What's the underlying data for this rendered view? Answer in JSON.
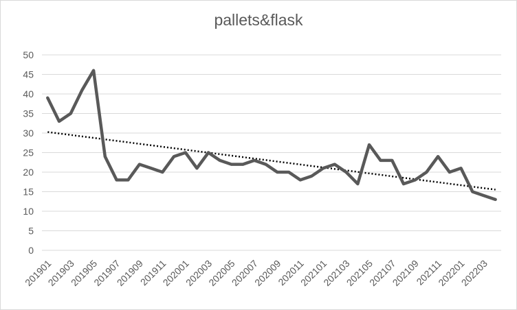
{
  "chart_data": {
    "type": "line",
    "title": "pallets&flask",
    "xlabel": "",
    "ylabel": "",
    "ylim": [
      0,
      50
    ],
    "y_ticks": [
      0,
      5,
      10,
      15,
      20,
      25,
      30,
      35,
      40,
      45,
      50
    ],
    "x": [
      "201901",
      "201902",
      "201903",
      "201904",
      "201905",
      "201906",
      "201907",
      "201908",
      "201909",
      "201910",
      "201911",
      "201912",
      "202001",
      "202002",
      "202003",
      "202004",
      "202005",
      "202006",
      "202007",
      "202008",
      "202009",
      "202010",
      "202011",
      "202012",
      "202101",
      "202102",
      "202103",
      "202104",
      "202105",
      "202106",
      "202107",
      "202108",
      "202109",
      "202110",
      "202111",
      "202112",
      "202201",
      "202202",
      "202203",
      "202204"
    ],
    "x_tick_labels": [
      "201901",
      "201903",
      "201905",
      "201907",
      "201909",
      "201911",
      "202001",
      "202003",
      "202005",
      "202007",
      "202009",
      "202011",
      "202101",
      "202103",
      "202105",
      "202107",
      "202109",
      "202111",
      "202201",
      "202203"
    ],
    "series": [
      {
        "values": [
          39,
          33,
          35,
          41,
          46,
          24,
          18,
          18,
          22,
          21,
          20,
          24,
          25,
          21,
          25,
          23,
          22,
          22,
          23,
          22,
          20,
          20,
          18,
          19,
          21,
          22,
          20,
          17,
          27,
          23,
          23,
          17,
          18,
          20,
          24,
          20,
          21,
          15,
          14,
          13
        ],
        "color": "#595959"
      }
    ],
    "trendline": {
      "type": "linear",
      "style": "dotted",
      "color": "#000000"
    },
    "grid": true,
    "legend": "none"
  }
}
